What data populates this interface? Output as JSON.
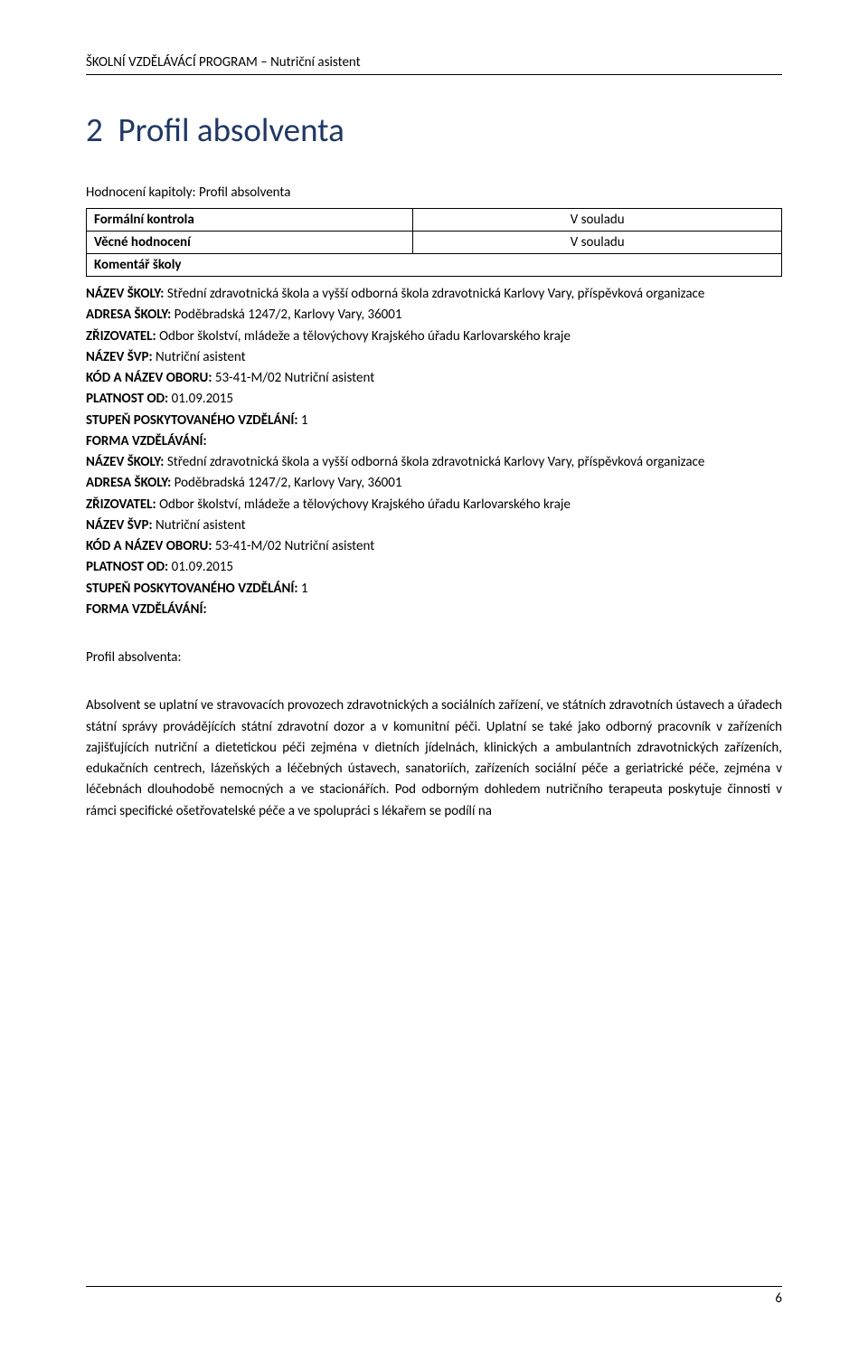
{
  "header": {
    "text": "ŠKOLNÍ VZDĚLÁVÁCÍ PROGRAM – Nutriční asistent"
  },
  "section": {
    "number": "2",
    "title": "Profil absolventa"
  },
  "assessment": {
    "heading": "Hodnocení kapitoly: Profil absolventa",
    "rows": [
      {
        "label": "Formální kontrola",
        "value": "V souladu"
      },
      {
        "label": "Věcné hodnocení",
        "value": "V souladu"
      }
    ],
    "komentar_label": "Komentář školy"
  },
  "block1": {
    "line1_label": "NÁZEV ŠKOLY:",
    "line1_text": " Střední zdravotnická škola a vyšší odborná škola zdravotnická Karlovy Vary, příspěvková organizace",
    "line2_label": "ADRESA ŠKOLY:",
    "line2_text": " Poděbradská 1247/2, Karlovy Vary, 36001",
    "line3_label": "ZŘIZOVATEL:",
    "line3_text": " Odbor školství, mládeže a tělovýchovy Krajského úřadu Karlovarského kraje",
    "line4_label": "NÁZEV ŠVP:",
    "line4_text": " Nutriční asistent",
    "line5_label": "KÓD A NÁZEV OBORU:",
    "line5_text": " 53-41-M/02 Nutriční asistent",
    "line6_label": "PLATNOST OD:",
    "line6_text": " 01.09.2015",
    "line7_label": "STUPEŇ POSKYTOVANÉHO VZDĚLÁNÍ:",
    "line7_text": " 1",
    "line8_label": "FORMA VZDĚLÁVÁNÍ:"
  },
  "block2": {
    "line1_label": "NÁZEV ŠKOLY:",
    "line1_text": " Střední zdravotnická škola a vyšší odborná škola zdravotnická Karlovy Vary, příspěvková organizace",
    "line2_label": "ADRESA ŠKOLY:",
    "line2_text": " Poděbradská 1247/2, Karlovy Vary, 36001",
    "line3_label": "ZŘIZOVATEL:",
    "line3_text": " Odbor školství, mládeže a tělovýchovy Krajského úřadu Karlovarského kraje",
    "line4_label": "NÁZEV ŠVP:",
    "line4_text": " Nutriční asistent",
    "line5_label": "KÓD A NÁZEV OBORU:",
    "line5_text": " 53-41-M/02 Nutriční asistent",
    "line6_label": "PLATNOST OD:",
    "line6_text": " 01.09.2015",
    "line7_label": "STUPEŇ POSKYTOVANÉHO VZDĚLÁNÍ:",
    "line7_text": " 1",
    "line8_label": "FORMA VZDĚLÁVÁNÍ:"
  },
  "profile": {
    "heading": "Profil absolventa:",
    "paragraph": "Absolvent se uplatní ve stravovacích provozech zdravotnických a sociálních zařízení, ve státních zdravotních ústavech a úřadech státní správy provádějících státní zdravotní dozor a v komunitní péči. Uplatní se také jako odborný pracovník v zařízeních zajišťujících nutriční a dietetickou péči zejména v dietních jídelnách, klinických a ambulantních zdravotnických zařízeních, edukačních centrech, lázeňských a léčebných ústavech, sanatoriích, zařízeních sociální péče a geriatrické péče, zejména v léčebnách dlouhodobě nemocných a ve stacionářích. Pod odborným dohledem nutričního terapeuta poskytuje činnosti v rámci specifické ošetřovatelské péče a ve spolupráci s lékařem se podílí na"
  },
  "footer": {
    "page": "6"
  },
  "colors": {
    "title_color": "#1f3864",
    "text_color": "#000000",
    "background": "#ffffff",
    "border_color": "#000000"
  }
}
